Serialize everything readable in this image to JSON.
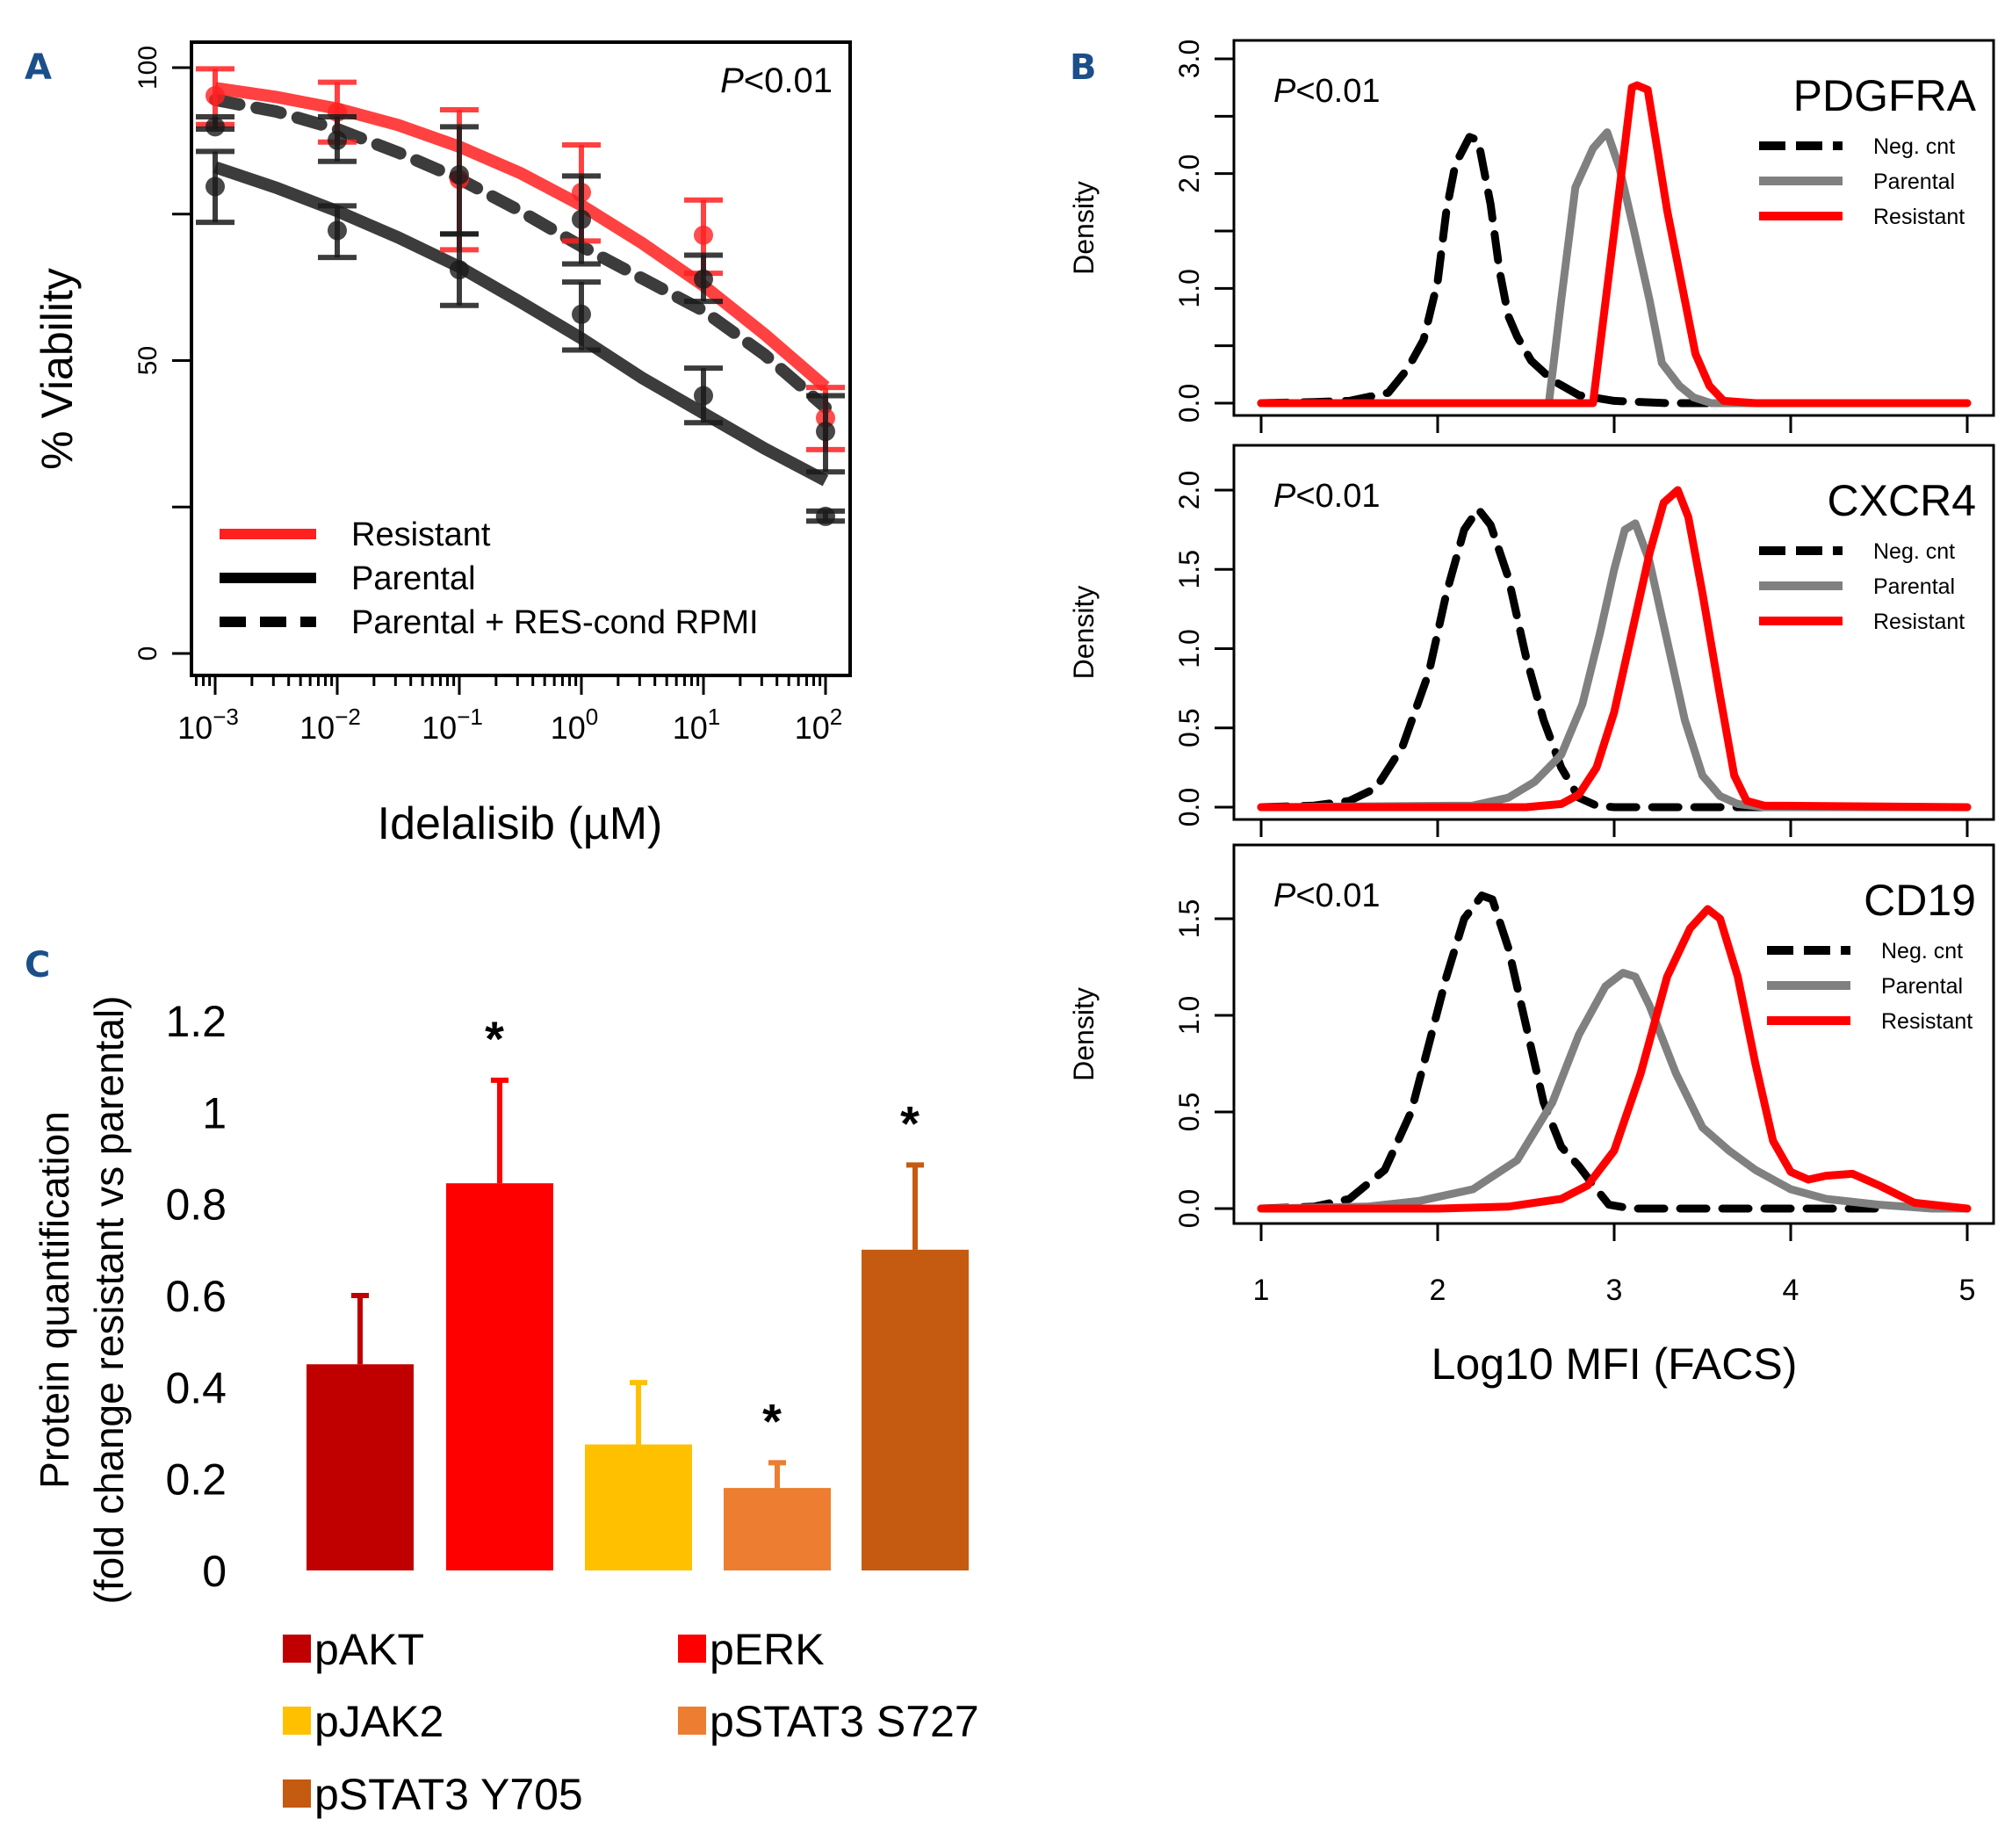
{
  "figure": {
    "panel_labels": [
      "A",
      "B",
      "C"
    ]
  },
  "chart_data": [
    {
      "id": "A",
      "type": "line",
      "title": "",
      "xlabel": "Idelalisib (µM)",
      "ylabel": "% Viability",
      "x_scale": "log10",
      "xlim_log10": [
        -3.3,
        2.2
      ],
      "ylim": [
        -4,
        104
      ],
      "x_ticks_log10": [
        -3,
        -2,
        -1,
        0,
        1,
        2
      ],
      "x_tick_labels": [
        {
          "base": "10",
          "exp": "−3"
        },
        {
          "base": "10",
          "exp": "−2"
        },
        {
          "base": "10",
          "exp": "−1"
        },
        {
          "base": "10",
          "exp": "0"
        },
        {
          "base": "10",
          "exp": "1"
        },
        {
          "base": "10",
          "exp": "2"
        }
      ],
      "y_ticks": [
        0,
        25,
        50,
        75,
        100
      ],
      "y_tick_labels": [
        "0",
        "",
        "50",
        "",
        "100"
      ],
      "annotation": {
        "italic": "P",
        "rest": "<0.01"
      },
      "legend": {
        "placement": "bottom-left",
        "entries": [
          {
            "label": "Resistant",
            "color": "#ff2020",
            "style": "solid"
          },
          {
            "label": "Parental",
            "color": "#000000",
            "style": "solid"
          },
          {
            "label": "Parental + RES-cond RPMI",
            "color": "#000000",
            "style": "dashed"
          }
        ]
      },
      "series": [
        {
          "name": "Resistant",
          "color": "#ff2020",
          "style": "solid",
          "x_log10": [
            -3,
            -2,
            -1,
            0,
            1,
            2
          ],
          "mean": [
            95.2,
            92.4,
            80.9,
            78.7,
            71.4,
            40.2
          ],
          "err_hi": [
            99.8,
            97.5,
            92.8,
            86.8,
            77.4,
            45.4
          ],
          "err_lo": [
            90.3,
            87.3,
            68.9,
            70.4,
            64.9,
            34.8
          ],
          "fit_x_log10": [
            -3,
            -2.5,
            -2,
            -1.5,
            -1,
            -0.5,
            0,
            0.5,
            1,
            1.5,
            2
          ],
          "fit_y": [
            96.5,
            95.0,
            93.0,
            90.2,
            86.5,
            82.0,
            76.5,
            70.0,
            62.8,
            54.5,
            45.5
          ]
        },
        {
          "name": "Parental",
          "color": "#1a1a1a",
          "style": "solid",
          "x_log10": [
            -3,
            -2,
            -1,
            0,
            1,
            2
          ],
          "mean": [
            79.7,
            72.2,
            65.5,
            57.9,
            44.0,
            23.4
          ],
          "err_hi": [
            85.7,
            76.4,
            71.6,
            63.4,
            48.7,
            24.3
          ],
          "err_lo": [
            73.6,
            67.6,
            59.4,
            51.8,
            39.4,
            22.6
          ],
          "fit_x_log10": [
            -3,
            -2.5,
            -2,
            -1.5,
            -1,
            -0.5,
            0,
            0.5,
            1,
            1.5,
            2
          ],
          "fit_y": [
            83.0,
            79.5,
            75.5,
            71.0,
            66.0,
            60.0,
            53.8,
            47.0,
            41.0,
            35.0,
            29.5
          ]
        },
        {
          "name": "Parental + RES-cond RPMI",
          "color": "#1a1a1a",
          "style": "dashed",
          "x_log10": [
            -3,
            -2,
            -1,
            0,
            1,
            2
          ],
          "mean": [
            89.9,
            87.6,
            81.7,
            74.1,
            63.9,
            37.9
          ],
          "err_hi": [
            91.6,
            91.6,
            89.9,
            81.5,
            68.0,
            44.0
          ],
          "err_lo": [
            89.5,
            84.0,
            71.6,
            66.5,
            60.1,
            31.0
          ],
          "fit_x_log10": [
            -3,
            -2.5,
            -2,
            -1.5,
            -1,
            -0.5,
            0,
            0.5,
            1,
            1.5,
            2
          ],
          "fit_y": [
            94.5,
            92.5,
            89.5,
            85.5,
            81.0,
            75.5,
            69.5,
            64.0,
            58.5,
            51.0,
            42.0
          ]
        }
      ]
    },
    {
      "id": "B",
      "type": "line",
      "xlabel": "Log10 MFI (FACS)",
      "ylabel": "Density",
      "xlim": [
        0.86,
        5.23
      ],
      "x_ticks": [
        1,
        2,
        3,
        4,
        5
      ],
      "x_tick_labels": [
        "1",
        "2",
        "3",
        "4",
        "5"
      ],
      "legend_entries": [
        {
          "label": "Neg. cnt",
          "color": "#000000",
          "style": "dashed"
        },
        {
          "label": "Parental",
          "color": "#808080",
          "style": "solid"
        },
        {
          "label": "Resistant",
          "color": "#ff0000",
          "style": "solid"
        }
      ],
      "panels": [
        {
          "marker": "PDGFRA",
          "annotation": {
            "italic": "P",
            "rest": "<0.01"
          },
          "ylim": [
            -0.1,
            3.15
          ],
          "y_ticks": [
            0,
            0.5,
            1.0,
            1.5,
            2.0,
            2.5,
            3.0
          ],
          "y_tick_labels": [
            "0.0",
            "",
            "1.0",
            "",
            "2.0",
            "",
            "3.0"
          ],
          "series": [
            {
              "name": "Neg. cnt",
              "x": [
                1.0,
                1.3,
                1.5,
                1.72,
                1.83,
                1.92,
                2.0,
                2.05,
                2.1,
                2.18,
                2.23,
                2.3,
                2.35,
                2.4,
                2.45,
                2.53,
                2.65,
                2.8,
                3.0,
                3.3,
                3.6
              ],
              "y": [
                0.0,
                0.01,
                0.02,
                0.09,
                0.3,
                0.55,
                1.06,
                1.68,
                2.08,
                2.32,
                2.29,
                1.73,
                1.16,
                0.76,
                0.58,
                0.37,
                0.2,
                0.07,
                0.02,
                0.0,
                0.0
              ]
            },
            {
              "name": "Parental",
              "x": [
                1.0,
                2.6,
                2.63,
                2.7,
                2.78,
                2.88,
                2.96,
                3.03,
                3.11,
                3.2,
                3.27,
                3.37,
                3.45,
                3.55,
                5.0
              ],
              "y": [
                0.0,
                0.0,
                0.0,
                0.9,
                1.88,
                2.22,
                2.36,
                2.05,
                1.52,
                0.9,
                0.35,
                0.15,
                0.05,
                0.0,
                0.0
              ]
            },
            {
              "name": "Resistant",
              "x": [
                1.0,
                2.85,
                2.88,
                2.96,
                3.05,
                3.1,
                3.13,
                3.19,
                3.3,
                3.4,
                3.46,
                3.54,
                3.62,
                3.8,
                5.0
              ],
              "y": [
                0.0,
                0.0,
                0.0,
                1.0,
                2.11,
                2.75,
                2.77,
                2.73,
                1.68,
                0.9,
                0.43,
                0.15,
                0.02,
                0.0,
                0.0
              ]
            }
          ]
        },
        {
          "marker": "CXCR4",
          "annotation": {
            "italic": "P",
            "rest": "<0.01"
          },
          "ylim": [
            -0.09,
            2.3
          ],
          "y_ticks": [
            0,
            0.5,
            1.0,
            1.5,
            2.0
          ],
          "y_tick_labels": [
            "0.0",
            "0.5",
            "1.0",
            "1.5",
            "2.0"
          ],
          "series": [
            {
              "name": "Neg. cnt",
              "x": [
                1.0,
                1.3,
                1.5,
                1.65,
                1.8,
                1.95,
                2.05,
                2.15,
                2.23,
                2.3,
                2.4,
                2.5,
                2.6,
                2.7,
                2.8,
                2.9,
                3.0,
                3.3,
                3.6,
                4.0
              ],
              "y": [
                0.0,
                0.01,
                0.04,
                0.12,
                0.38,
                0.85,
                1.35,
                1.75,
                1.88,
                1.78,
                1.45,
                0.95,
                0.55,
                0.25,
                0.06,
                0.01,
                0.0,
                0.0,
                0.0,
                0.0
              ]
            },
            {
              "name": "Parental",
              "x": [
                1.0,
                2.2,
                2.4,
                2.55,
                2.7,
                2.82,
                2.92,
                3.0,
                3.06,
                3.12,
                3.2,
                3.3,
                3.4,
                3.5,
                3.6,
                3.7,
                3.85,
                5.0
              ],
              "y": [
                0.0,
                0.01,
                0.06,
                0.16,
                0.33,
                0.65,
                1.1,
                1.5,
                1.75,
                1.79,
                1.55,
                1.05,
                0.55,
                0.2,
                0.07,
                0.02,
                0.0,
                0.0
              ]
            },
            {
              "name": "Resistant",
              "x": [
                1.0,
                2.5,
                2.7,
                2.8,
                2.9,
                3.0,
                3.1,
                3.2,
                3.28,
                3.36,
                3.42,
                3.5,
                3.6,
                3.68,
                3.75,
                3.85,
                5.0
              ],
              "y": [
                0.0,
                0.0,
                0.02,
                0.08,
                0.25,
                0.6,
                1.1,
                1.6,
                1.92,
                2.0,
                1.83,
                1.35,
                0.7,
                0.2,
                0.04,
                0.01,
                0.0
              ]
            }
          ]
        },
        {
          "marker": "CD19",
          "annotation": {
            "italic": "P",
            "rest": "<0.01"
          },
          "ylim": [
            -0.07,
            1.9
          ],
          "y_ticks": [
            0,
            0.5,
            1.0,
            1.5
          ],
          "y_tick_labels": [
            "0.0",
            "0.5",
            "1.0",
            "1.5"
          ],
          "series": [
            {
              "name": "Neg. cnt",
              "x": [
                1.0,
                1.3,
                1.5,
                1.7,
                1.85,
                1.95,
                2.05,
                2.15,
                2.25,
                2.31,
                2.4,
                2.5,
                2.6,
                2.7,
                2.8,
                2.9,
                2.97,
                3.1,
                3.5,
                4.0,
                4.5
              ],
              "y": [
                0.0,
                0.01,
                0.05,
                0.2,
                0.5,
                0.85,
                1.2,
                1.5,
                1.62,
                1.6,
                1.35,
                0.95,
                0.55,
                0.32,
                0.22,
                0.1,
                0.02,
                0.0,
                0.0,
                0.0,
                0.0
              ]
            },
            {
              "name": "Parental",
              "x": [
                1.0,
                1.6,
                1.9,
                2.2,
                2.45,
                2.65,
                2.8,
                2.95,
                3.05,
                3.12,
                3.2,
                3.35,
                3.5,
                3.65,
                3.8,
                4.0,
                4.2,
                4.5,
                4.8,
                5.0
              ],
              "y": [
                0.0,
                0.01,
                0.04,
                0.1,
                0.25,
                0.55,
                0.9,
                1.15,
                1.22,
                1.2,
                1.05,
                0.7,
                0.42,
                0.3,
                0.2,
                0.1,
                0.05,
                0.02,
                0.0,
                0.0
              ]
            },
            {
              "name": "Resistant",
              "x": [
                1.0,
                2.0,
                2.4,
                2.7,
                2.85,
                3.0,
                3.15,
                3.3,
                3.43,
                3.53,
                3.6,
                3.7,
                3.8,
                3.9,
                4.0,
                4.1,
                4.2,
                4.35,
                4.5,
                4.7,
                5.0
              ],
              "y": [
                0.0,
                0.0,
                0.01,
                0.05,
                0.12,
                0.3,
                0.7,
                1.2,
                1.45,
                1.55,
                1.5,
                1.2,
                0.75,
                0.35,
                0.19,
                0.15,
                0.17,
                0.18,
                0.12,
                0.03,
                0.0
              ]
            }
          ]
        }
      ]
    },
    {
      "id": "C",
      "type": "bar",
      "title": "",
      "xlabel": "",
      "ylabel_line1": "Protein quantification",
      "ylabel_line2": "(fold change resistant vs parental)",
      "ylim": [
        0,
        1.2
      ],
      "y_ticks": [
        0,
        0.2,
        0.4,
        0.6,
        0.8,
        1.0,
        1.2
      ],
      "y_tick_labels": [
        "0",
        "0.2",
        "0.4",
        "0.6",
        "0.8",
        "1",
        "1.2"
      ],
      "categories": [
        "pAKT",
        "pERK",
        "pJAK2",
        "pSTAT3 S727",
        "pSTAT3 Y705"
      ],
      "values": [
        0.45,
        0.845,
        0.275,
        0.18,
        0.7
      ],
      "error_upper": [
        0.6,
        1.07,
        0.41,
        0.235,
        0.885
      ],
      "significant": [
        false,
        true,
        false,
        true,
        true
      ],
      "significance_marker": "*",
      "colors": [
        "#c00000",
        "#ff0000",
        "#ffc000",
        "#ed7d31",
        "#c55a11"
      ],
      "legend": {
        "placement": "bottom",
        "entries": [
          "pAKT",
          "pERK",
          "pJAK2",
          "pSTAT3 S727",
          "pSTAT3 Y705"
        ]
      }
    }
  ]
}
